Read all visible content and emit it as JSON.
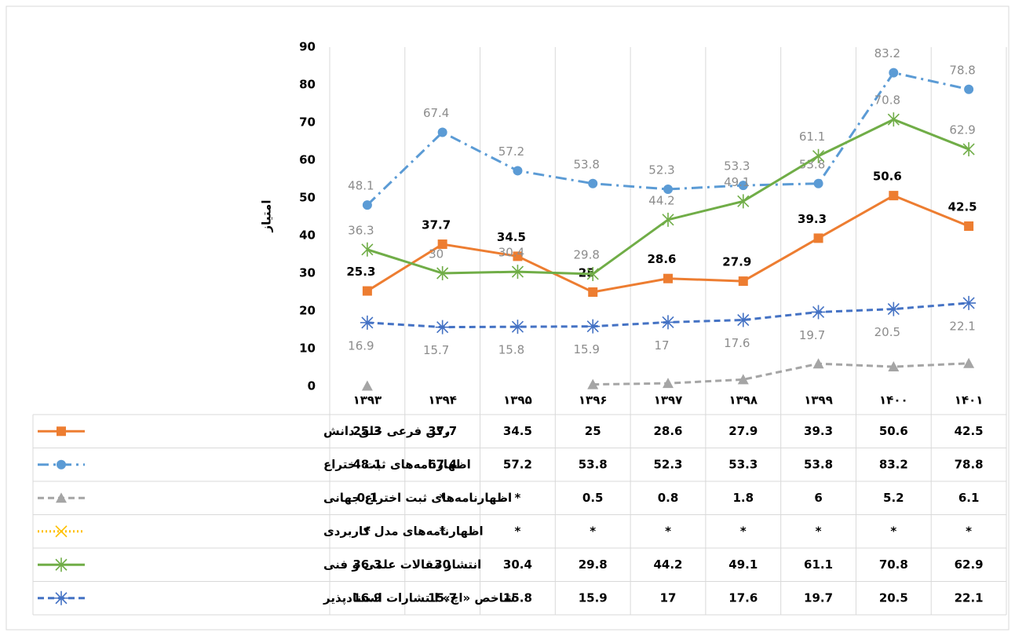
{
  "chart_data": {
    "type": "line",
    "y_label": "امتیاز",
    "categories": [
      "۱۳۹۳",
      "۱۳۹۴",
      "۱۳۹۵",
      "۱۳۹۶",
      "۱۳۹۷",
      "۱۳۹۸",
      "۱۳۹۹",
      "۱۴۰۰",
      "۱۴۰۱"
    ],
    "ylim": [
      0,
      90
    ],
    "yticks": [
      0,
      10,
      20,
      30,
      40,
      50,
      60,
      70,
      80,
      90
    ],
    "series": [
      {
        "name": "رکن فرعی خلق دانش",
        "color": "#ed7d31",
        "values": [
          25.3,
          37.7,
          34.5,
          25,
          28.6,
          27.9,
          39.3,
          50.6,
          42.5
        ]
      },
      {
        "name": "اظهارنامه‌های ثبت اختراع",
        "color": "#5b9bd5",
        "values": [
          48.1,
          67.4,
          57.2,
          53.8,
          52.3,
          53.3,
          53.8,
          83.2,
          78.8
        ]
      },
      {
        "name": "اظهارنامه‌های ثبت اختراع جهانی",
        "color": "#a5a5a5",
        "values": [
          0.1,
          null,
          null,
          0.5,
          0.8,
          1.8,
          6,
          5.2,
          6.1
        ],
        "value_labels": [
          "0.1",
          "*",
          "*",
          "0.5",
          "0.8",
          "1.8",
          "6",
          "5.2",
          "6.1"
        ]
      },
      {
        "name": "اظهارنامه‌های مدل کاربردی",
        "color": "#ffc000",
        "values": [
          null,
          null,
          null,
          null,
          null,
          null,
          null,
          null,
          null
        ],
        "value_labels": [
          "*",
          "*",
          "*",
          "*",
          "*",
          "*",
          "*",
          "*",
          "*"
        ]
      },
      {
        "name": "انتشار مقالات علمی و فنی",
        "color": "#70ad47",
        "values": [
          36.3,
          30,
          30.4,
          29.8,
          44.2,
          49.1,
          61.1,
          70.8,
          62.9
        ]
      },
      {
        "name": "شاخص «اچ» انتشارات استنادپذیر",
        "color": "#4472c4",
        "values": [
          16.9,
          15.7,
          15.8,
          15.9,
          17,
          17.6,
          19.7,
          20.5,
          22.1
        ]
      }
    ]
  }
}
